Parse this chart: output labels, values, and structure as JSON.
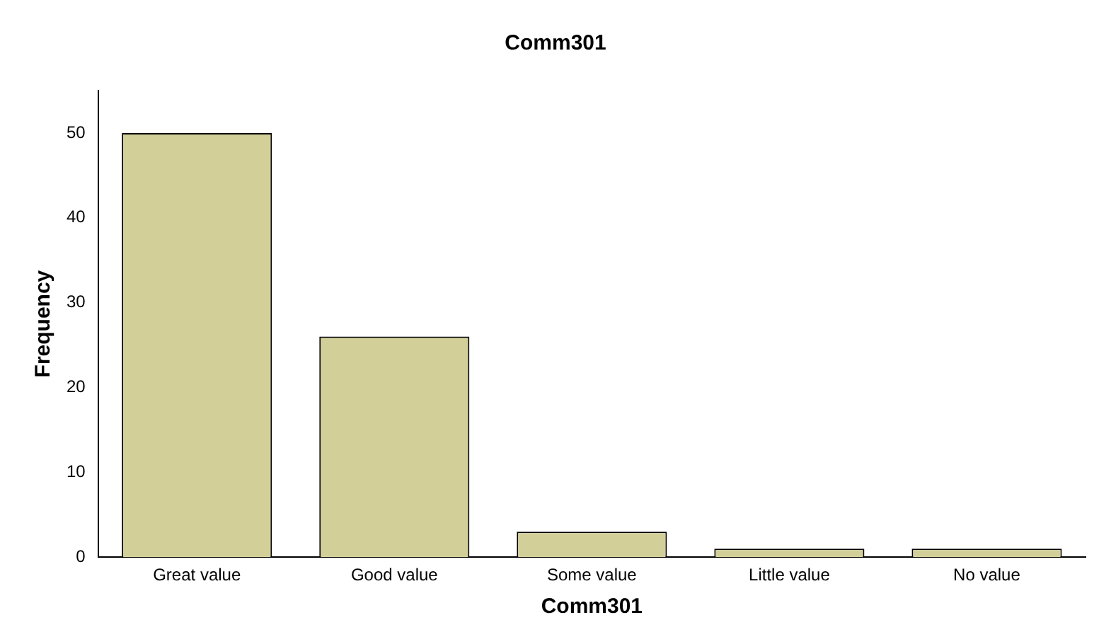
{
  "chart_data": {
    "type": "bar",
    "title": "Comm301",
    "xlabel": "Comm301",
    "ylabel": "Frequency",
    "categories": [
      "Great value",
      "Good value",
      "Some value",
      "Little value",
      "No value"
    ],
    "values": [
      50,
      26,
      3,
      1,
      1
    ],
    "color": "#d3cf98",
    "ylim": [
      0,
      55
    ],
    "yticks": [
      0,
      10,
      20,
      30,
      40,
      50
    ],
    "grid": false,
    "legend": false
  }
}
